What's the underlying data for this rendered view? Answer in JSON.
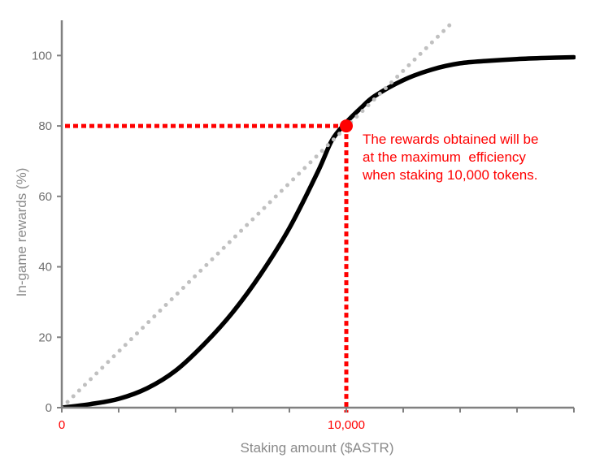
{
  "chart_data": {
    "type": "line",
    "title": "",
    "xlabel": "Staking amount ($ASTR)",
    "ylabel": "In-game rewards (%)",
    "xlim": [
      0,
      18000
    ],
    "ylim": [
      0,
      110
    ],
    "x_ticks": [
      0,
      10000
    ],
    "x_tick_labels": [
      "0",
      "10,000"
    ],
    "x_minor_ticks": [
      2000,
      4000,
      6000,
      8000,
      12000,
      14000,
      16000
    ],
    "y_ticks": [
      0,
      20,
      40,
      60,
      80,
      100
    ],
    "y_tick_labels": [
      "0",
      "20",
      "40",
      "60",
      "80",
      "100"
    ],
    "grid": false,
    "legend": "none",
    "series": [
      {
        "style": "solid",
        "color": "#000000",
        "x": [
          0,
          1000,
          2000,
          3000,
          4000,
          5000,
          6000,
          7000,
          8000,
          9000,
          9500,
          10000,
          10500,
          11000,
          12000,
          13000,
          14000,
          15000,
          16000,
          17000,
          18000
        ],
        "y": [
          0,
          1,
          2.5,
          5.5,
          10.5,
          18,
          27,
          38,
          51,
          67,
          76,
          81,
          85,
          88.5,
          93,
          96,
          97.8,
          98.5,
          99,
          99.3,
          99.5
        ]
      },
      {
        "style": "dotted",
        "color": "#c0c0c0",
        "x": [
          0,
          13800
        ],
        "y": [
          0,
          110
        ]
      }
    ],
    "highlight_point": {
      "x": 10000,
      "y": 80,
      "color": "#ff0000"
    },
    "annotation": {
      "lines": [
        "The rewards obtained will be",
        "at the maximum  efficiency",
        "when staking 10,000 tokens."
      ],
      "color": "#ff0000"
    },
    "colors": {
      "axis": "#808080",
      "tick_label": "#707070",
      "highlight": "#ff0000"
    }
  }
}
